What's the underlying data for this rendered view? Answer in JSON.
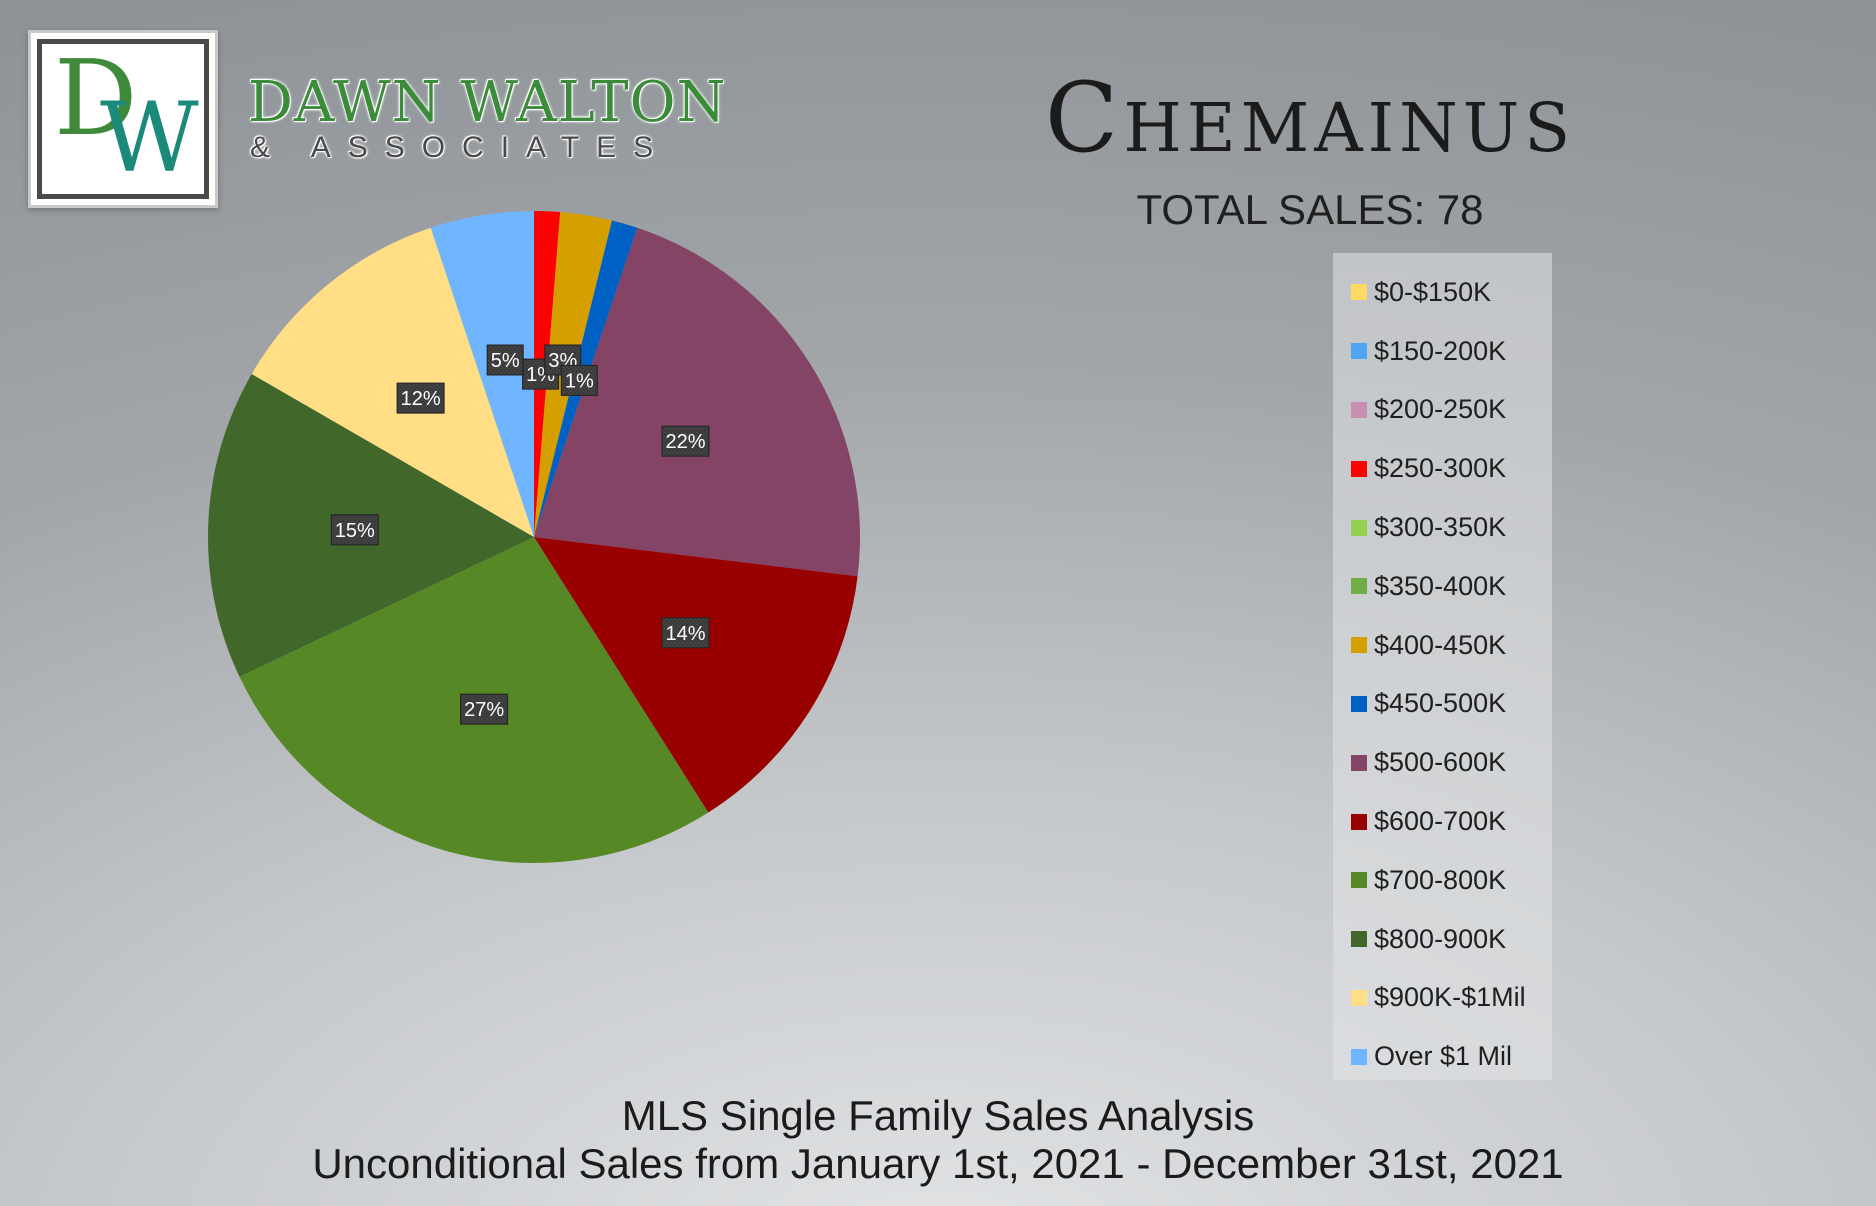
{
  "brand": {
    "logo_d": "D",
    "logo_w": "W",
    "name_line1": "DAWN WALTON",
    "name_line2": "& ASSOCIATES",
    "colors": {
      "green": "#3b8b3b",
      "teal": "#1b8a7a"
    }
  },
  "header": {
    "title": "Chemainus",
    "total_sales": "TOTAL SALES: 78"
  },
  "footer": {
    "line1": "MLS Single Family Sales Analysis",
    "line2": "Unconditional Sales from January 1st, 2021 - December 31st, 2021"
  },
  "chart_data": {
    "type": "pie",
    "categories": [
      "$0-$150K",
      "$150-200K",
      "$200-250K",
      "$250-300K",
      "$300-350K",
      "$350-400K",
      "$400-450K",
      "$450-500K",
      "$500-600K",
      "$600-700K",
      "$700-800K",
      "$800-900K",
      "$900K-$1Mil",
      "Over $1 Mil"
    ],
    "values": [
      0,
      0,
      0,
      1,
      0,
      0,
      2,
      1,
      17,
      11,
      21,
      12,
      9,
      4
    ],
    "colors": [
      "#ffd966",
      "#4ea5f0",
      "#c98fb0",
      "#ff0000",
      "#92d050",
      "#70ad47",
      "#d69f00",
      "#0061c5",
      "#834465",
      "#990000",
      "#568826",
      "#41672b",
      "#ffde86",
      "#6fb5ff"
    ],
    "data_labels": [
      "",
      "",
      "",
      "1%",
      "",
      "",
      "3%",
      "1%",
      "22%",
      "14%",
      "27%",
      "15%",
      "12%",
      "5%"
    ],
    "start_angle_deg": 0,
    "direction": "clockwise",
    "legend": "right"
  }
}
